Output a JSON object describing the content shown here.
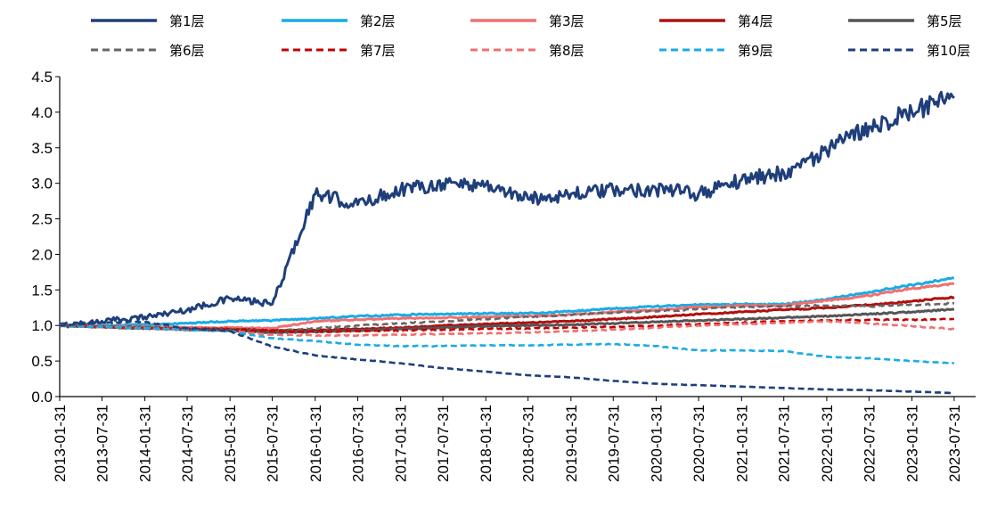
{
  "chart_data": {
    "type": "line",
    "title": "",
    "xlabel": "",
    "ylabel": "",
    "ylim": [
      0,
      4.5
    ],
    "yticks": [
      "0.0",
      "0.5",
      "1.0",
      "1.5",
      "2.0",
      "2.5",
      "3.0",
      "3.5",
      "4.0",
      "4.5"
    ],
    "x_range": [
      "2013-01-31",
      "2023-10-31"
    ],
    "xticks": [
      "2013-01-31",
      "2013-07-31",
      "2014-01-31",
      "2014-07-31",
      "2015-01-31",
      "2015-07-31",
      "2016-01-31",
      "2016-07-31",
      "2017-01-31",
      "2017-07-31",
      "2018-01-31",
      "2018-07-31",
      "2019-01-31",
      "2019-07-31",
      "2020-01-31",
      "2020-07-31",
      "2021-01-31",
      "2021-07-31",
      "2022-01-31",
      "2022-07-31",
      "2023-01-31",
      "2023-07-31"
    ],
    "legend_position": "top",
    "series": [
      {
        "name": "第1层",
        "color": "#1f3f7a",
        "dash": "solid",
        "values": [
          1.0,
          1.06,
          1.12,
          1.22,
          1.38,
          1.3,
          2.85,
          2.7,
          2.92,
          3.0,
          2.98,
          2.78,
          2.85,
          2.9,
          2.92,
          2.85,
          3.05,
          3.15,
          3.45,
          3.8,
          4.0,
          4.2
        ]
      },
      {
        "name": "第2层",
        "color": "#1aabe6",
        "dash": "solid",
        "values": [
          1.0,
          1.0,
          1.01,
          1.03,
          1.06,
          1.07,
          1.1,
          1.13,
          1.15,
          1.16,
          1.17,
          1.17,
          1.2,
          1.24,
          1.27,
          1.29,
          1.3,
          1.3,
          1.37,
          1.47,
          1.57,
          1.67
        ]
      },
      {
        "name": "第3层",
        "color": "#f07070",
        "dash": "solid",
        "values": [
          1.0,
          0.99,
          0.98,
          0.97,
          0.97,
          0.96,
          1.06,
          1.08,
          1.1,
          1.11,
          1.12,
          1.13,
          1.15,
          1.19,
          1.22,
          1.26,
          1.28,
          1.28,
          1.35,
          1.42,
          1.52,
          1.59
        ]
      },
      {
        "name": "第4层",
        "color": "#b01010",
        "dash": "solid",
        "values": [
          1.0,
          0.98,
          0.96,
          0.95,
          0.95,
          0.93,
          0.93,
          0.95,
          0.97,
          1.0,
          1.02,
          1.04,
          1.06,
          1.09,
          1.12,
          1.16,
          1.19,
          1.22,
          1.25,
          1.29,
          1.34,
          1.4
        ]
      },
      {
        "name": "第5层",
        "color": "#555555",
        "dash": "solid",
        "values": [
          1.0,
          0.98,
          0.96,
          0.94,
          0.93,
          0.9,
          0.91,
          0.93,
          0.95,
          0.97,
          0.99,
          1.0,
          1.01,
          1.03,
          1.05,
          1.07,
          1.09,
          1.11,
          1.13,
          1.16,
          1.19,
          1.23
        ]
      },
      {
        "name": "第6层",
        "color": "#666666",
        "dash": "dashed",
        "values": [
          1.0,
          0.99,
          0.98,
          0.96,
          0.95,
          0.92,
          0.96,
          1.0,
          1.03,
          1.06,
          1.09,
          1.12,
          1.15,
          1.18,
          1.2,
          1.23,
          1.26,
          1.27,
          1.28,
          1.27,
          1.29,
          1.31
        ]
      },
      {
        "name": "第7层",
        "color": "#c00000",
        "dash": "dashed",
        "values": [
          1.0,
          0.98,
          0.96,
          0.95,
          0.94,
          0.92,
          0.91,
          0.92,
          0.93,
          0.94,
          0.95,
          0.96,
          0.97,
          0.98,
          1.0,
          1.02,
          1.04,
          1.06,
          1.07,
          1.08,
          1.08,
          1.09
        ]
      },
      {
        "name": "第8层",
        "color": "#f07070",
        "dash": "dashed",
        "values": [
          1.0,
          0.98,
          0.96,
          0.94,
          0.92,
          0.87,
          0.86,
          0.86,
          0.87,
          0.88,
          0.89,
          0.9,
          0.92,
          0.94,
          0.97,
          1.0,
          1.02,
          1.04,
          1.06,
          1.03,
          0.99,
          0.95
        ]
      },
      {
        "name": "第9层",
        "color": "#1aabe6",
        "dash": "dashed",
        "values": [
          1.0,
          0.98,
          0.96,
          0.94,
          0.92,
          0.82,
          0.78,
          0.73,
          0.71,
          0.71,
          0.72,
          0.72,
          0.73,
          0.74,
          0.71,
          0.65,
          0.65,
          0.64,
          0.56,
          0.54,
          0.5,
          0.47
        ]
      },
      {
        "name": "第10层",
        "color": "#1f3f7a",
        "dash": "dashed",
        "values": [
          1.0,
          1.04,
          1.05,
          0.96,
          0.92,
          0.7,
          0.58,
          0.52,
          0.47,
          0.4,
          0.35,
          0.3,
          0.27,
          0.22,
          0.18,
          0.16,
          0.14,
          0.12,
          0.1,
          0.09,
          0.07,
          0.05
        ]
      }
    ]
  }
}
